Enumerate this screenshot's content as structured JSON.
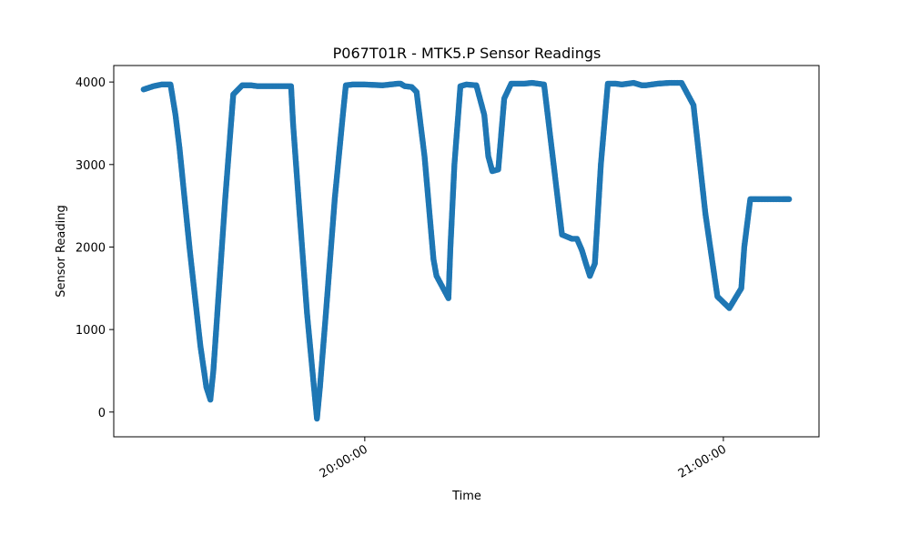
{
  "chart_data": {
    "type": "scatter",
    "title": "P067T01R - MTK5.P Sensor Readings",
    "xlabel": "Time",
    "ylabel": "Sensor Reading",
    "xlim": [
      "19:18:00",
      "21:16:00"
    ],
    "ylim": [
      -300,
      4200
    ],
    "x_ticks": [
      "20:00:00",
      "21:00:00"
    ],
    "y_ticks": [
      0,
      1000,
      2000,
      3000,
      4000
    ],
    "grid": false,
    "marker_color": "#1f77b4",
    "series": [
      {
        "x": [
          "19:23:00",
          "19:24:40",
          "19:26:00",
          "19:27:30",
          "19:28:20",
          "19:29:00",
          "19:30:40",
          "19:32:30",
          "19:33:30",
          "19:34:10",
          "19:34:40",
          "19:35:20",
          "19:36:40",
          "19:38:00",
          "19:39:30",
          "19:40:20",
          "19:41:00",
          "19:42:00",
          "19:45:00",
          "19:47:40",
          "19:48:00",
          "19:49:00",
          "19:50:20",
          "19:51:30",
          "19:52:00",
          "19:52:30",
          "19:53:30",
          "19:55:00",
          "19:56:20",
          "19:56:50",
          "19:58:00",
          "20:00:00",
          "20:03:00",
          "20:05:30",
          "20:06:00",
          "20:06:40",
          "20:07:50",
          "20:08:40",
          "20:10:00",
          "20:11:30",
          "20:12:00",
          "20:14:00",
          "20:14:20",
          "20:15:00",
          "20:16:00",
          "20:17:00",
          "20:18:40",
          "20:20:00",
          "20:20:40",
          "20:21:20",
          "20:22:20",
          "20:23:20",
          "20:24:30",
          "20:25:30",
          "20:26:40",
          "20:28:00",
          "20:30:00",
          "20:33:00",
          "20:34:00",
          "20:34:40",
          "20:35:30",
          "20:36:20",
          "20:37:00",
          "20:37:40",
          "20:38:30",
          "20:39:30",
          "20:40:40",
          "20:41:40",
          "20:42:00",
          "20:43:00",
          "20:44:00",
          "20:45:00",
          "20:46:20",
          "20:47:00",
          "20:49:00",
          "20:51:00",
          "20:53:00",
          "20:55:00",
          "20:57:00",
          "20:59:00",
          "21:01:00",
          "21:03:00",
          "21:03:30",
          "21:04:30",
          "21:05:40",
          "21:06:30",
          "21:07:10",
          "21:08:30",
          "21:09:10",
          "21:10:00",
          "21:10:30",
          "21:11:00"
        ],
        "y": [
          3910,
          3950,
          3970,
          3970,
          3600,
          3200,
          2000,
          800,
          300,
          150,
          500,
          1200,
          2600,
          3850,
          3960,
          3960,
          3960,
          3950,
          3950,
          3950,
          3500,
          2500,
          1200,
          300,
          -80,
          300,
          1200,
          2600,
          3600,
          3960,
          3970,
          3970,
          3960,
          3980,
          3980,
          3950,
          3940,
          3880,
          3100,
          1850,
          1650,
          1380,
          2000,
          3000,
          3950,
          3970,
          3960,
          3600,
          3100,
          2920,
          2940,
          3800,
          3980,
          3980,
          3980,
          3990,
          3970,
          2150,
          2120,
          2100,
          2100,
          1960,
          1800,
          1650,
          1800,
          3000,
          3980,
          3980,
          3980,
          3970,
          3980,
          3990,
          3960,
          3960,
          3980,
          3990,
          3990,
          3720,
          2400,
          1400,
          1260,
          1500,
          2000,
          2580,
          2580,
          2580,
          2580,
          2580,
          2580,
          2580,
          2580,
          2580
        ]
      }
    ]
  }
}
